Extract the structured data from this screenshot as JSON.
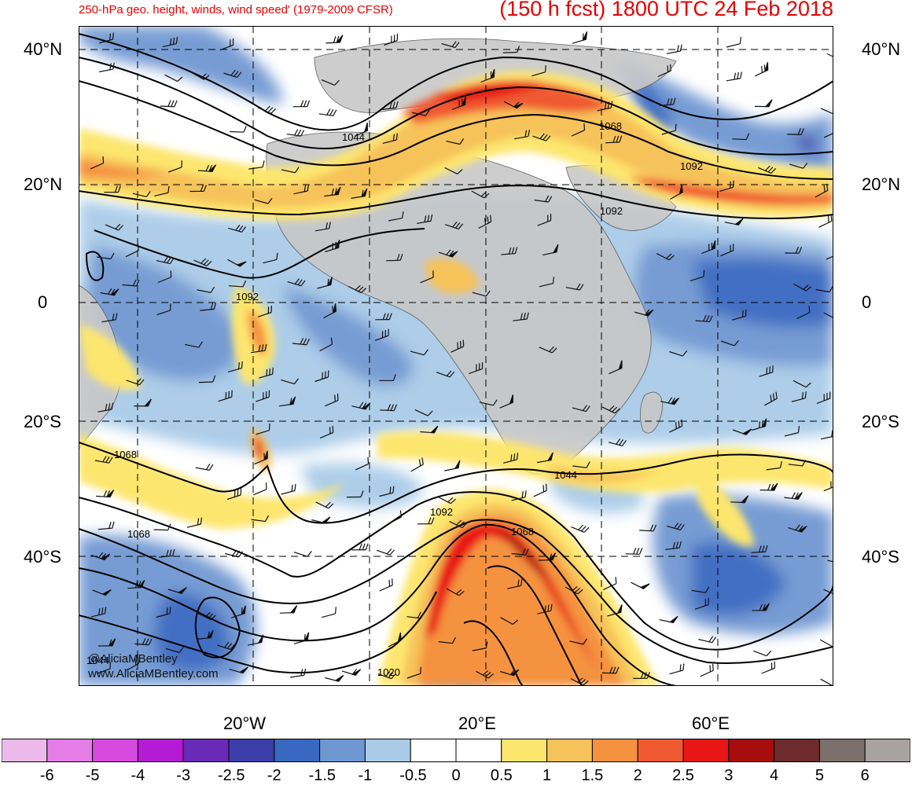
{
  "header": {
    "subtitle": "250-hPa geo. height, winds, wind speed' (1979-2009 CFSR)",
    "title": "(150 h fcst) 1800 UTC 24 Feb 2018"
  },
  "axes": {
    "lat_labels": [
      "40°N",
      "20°N",
      "0",
      "20°S",
      "40°S"
    ],
    "lon_labels": [
      "20°W",
      "20°E",
      "60°E"
    ]
  },
  "contour_labels": [
    "1044",
    "1068",
    "1092",
    "1092",
    "1092",
    "1068",
    "1044",
    "1068",
    "1092",
    "1068",
    "1044",
    "1020"
  ],
  "colorbar": {
    "levels": [
      "-6",
      "-5",
      "-4",
      "-3",
      "-2.5",
      "-2",
      "-1.5",
      "-1",
      "-0.5",
      "0",
      "0.5",
      "1",
      "1.5",
      "2",
      "2.5",
      "3",
      "4",
      "5",
      "6"
    ],
    "colors": [
      "#ebb9ea",
      "#e47ee6",
      "#d64bde",
      "#b51bd4",
      "#6a2ab8",
      "#3c3eaa",
      "#3868c0",
      "#6f97d2",
      "#a9cbe8",
      "#ffffff",
      "#ffffff",
      "#fde66e",
      "#f6c25a",
      "#f5923f",
      "#f05a32",
      "#e81616",
      "#a80d0d",
      "#6e2b2b",
      "#7b6f6c",
      "#a8a2a1"
    ]
  },
  "credit": {
    "line1": "@AliciaMBentley",
    "line2": "www.AliciaMBentley.com"
  },
  "colors": {
    "title": "#e60000",
    "land": "#c8c8c8",
    "contour": "#000000"
  }
}
